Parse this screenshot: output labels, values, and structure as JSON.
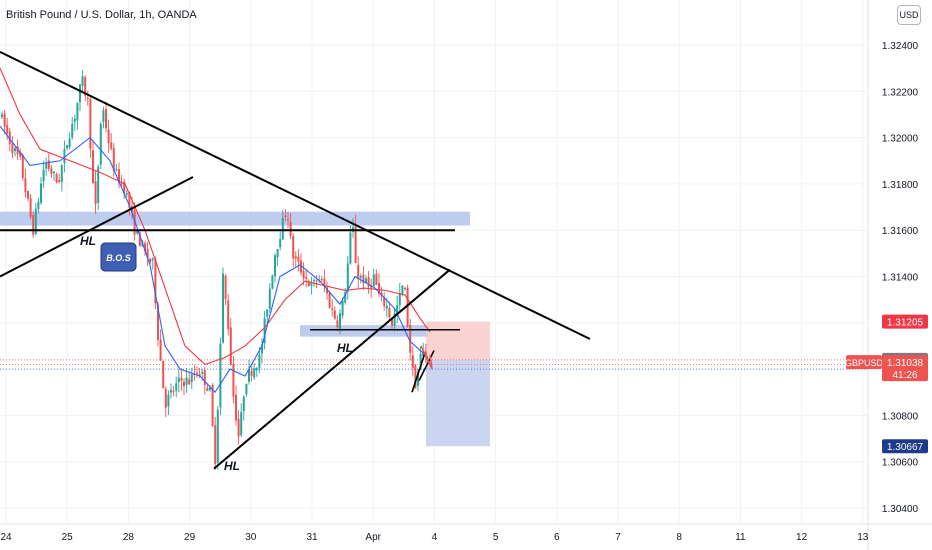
{
  "header": {
    "title": "British Pound / U.S. Dollar, 1h, OANDA",
    "currency_button": "USD"
  },
  "colors": {
    "bull": "#26a69a",
    "bear": "#ef5350",
    "ma_fast": "#2962ff",
    "ma_slow": "#f23645",
    "trendline": "#000000",
    "zone": "#b3c3ec",
    "stop_zone": "#f7c7c7",
    "target_zone": "#c5d0ee",
    "bos_box": "#3f5fb5"
  },
  "annotations": {
    "hl1": "HL",
    "hl2": "HL",
    "hl3": "HL",
    "bos": "B.O.S"
  },
  "price_badges": {
    "stop": "1.31205",
    "current": "1.31040",
    "symbol": "GBPUSD",
    "last_price": "1.31038",
    "countdown": "41:26",
    "target": "1.30667"
  },
  "chart_data": {
    "type": "candlestick",
    "symbol": "GBPUSD",
    "timeframe": "1h",
    "x_ticks": [
      "24",
      "25",
      "28",
      "29",
      "30",
      "31",
      "Apr",
      "4",
      "5",
      "6",
      "7",
      "8",
      "11",
      "12",
      "13"
    ],
    "y_ticks": [
      1.324,
      1.322,
      1.32,
      1.318,
      1.316,
      1.314,
      1.312,
      1.31,
      1.308,
      1.306,
      1.304
    ],
    "y_tick_labels": [
      "1.32400",
      "1.32200",
      "1.32000",
      "1.31800",
      "1.31600",
      "1.31400",
      "1.31200",
      "1.31000",
      "1.30800",
      "1.30600",
      "1.30400"
    ],
    "ylim": [
      1.303,
      1.325
    ],
    "grid": true,
    "path": [
      [
        0,
        1.321
      ],
      [
        12,
        1.3196
      ],
      [
        20,
        1.319
      ],
      [
        33,
        1.316
      ],
      [
        45,
        1.319
      ],
      [
        58,
        1.318
      ],
      [
        68,
        1.32
      ],
      [
        75,
        1.321
      ],
      [
        82,
        1.3225
      ],
      [
        88,
        1.3215
      ],
      [
        95,
        1.3165
      ],
      [
        102,
        1.3215
      ],
      [
        108,
        1.32
      ],
      [
        115,
        1.3185
      ],
      [
        125,
        1.3178
      ],
      [
        135,
        1.316
      ],
      [
        145,
        1.315
      ],
      [
        153,
        1.3145
      ],
      [
        158,
        1.3115
      ],
      [
        165,
        1.3085
      ],
      [
        172,
        1.309
      ],
      [
        180,
        1.3095
      ],
      [
        190,
        1.3095
      ],
      [
        198,
        1.31
      ],
      [
        205,
        1.3095
      ],
      [
        210,
        1.309
      ],
      [
        215,
        1.306
      ],
      [
        219,
        1.3095
      ],
      [
        223,
        1.314
      ],
      [
        228,
        1.312
      ],
      [
        233,
        1.309
      ],
      [
        239,
        1.307
      ],
      [
        245,
        1.3095
      ],
      [
        252,
        1.31
      ],
      [
        260,
        1.3105
      ],
      [
        268,
        1.313
      ],
      [
        275,
        1.315
      ],
      [
        281,
        1.316
      ],
      [
        287,
        1.317
      ],
      [
        292,
        1.315
      ],
      [
        298,
        1.3145
      ],
      [
        305,
        1.314
      ],
      [
        312,
        1.3135
      ],
      [
        318,
        1.314
      ],
      [
        325,
        1.3135
      ],
      [
        332,
        1.3125
      ],
      [
        338,
        1.312
      ],
      [
        344,
        1.313
      ],
      [
        349,
        1.315
      ],
      [
        352,
        1.3165
      ],
      [
        357,
        1.314
      ],
      [
        362,
        1.314
      ],
      [
        368,
        1.3135
      ],
      [
        374,
        1.314
      ],
      [
        380,
        1.313
      ],
      [
        386,
        1.3128
      ],
      [
        392,
        1.312
      ],
      [
        398,
        1.3128
      ],
      [
        404,
        1.3138
      ],
      [
        408,
        1.3118
      ],
      [
        412,
        1.31
      ],
      [
        416,
        1.3093
      ],
      [
        420,
        1.3105
      ],
      [
        424,
        1.3108
      ],
      [
        428,
        1.3104
      ]
    ],
    "ma_fast": [
      [
        0,
        1.3205
      ],
      [
        30,
        1.3188
      ],
      [
        60,
        1.319
      ],
      [
        90,
        1.32
      ],
      [
        110,
        1.319
      ],
      [
        130,
        1.317
      ],
      [
        150,
        1.3145
      ],
      [
        165,
        1.311
      ],
      [
        180,
        1.31
      ],
      [
        200,
        1.3097
      ],
      [
        215,
        1.309
      ],
      [
        230,
        1.31
      ],
      [
        245,
        1.3097
      ],
      [
        262,
        1.311
      ],
      [
        280,
        1.314
      ],
      [
        300,
        1.3145
      ],
      [
        320,
        1.3138
      ],
      [
        340,
        1.3128
      ],
      [
        355,
        1.314
      ],
      [
        375,
        1.3135
      ],
      [
        395,
        1.3126
      ],
      [
        410,
        1.3112
      ],
      [
        428,
        1.3105
      ]
    ],
    "ma_slow": [
      [
        0,
        1.323
      ],
      [
        20,
        1.321
      ],
      [
        40,
        1.3195
      ],
      [
        70,
        1.319
      ],
      [
        100,
        1.3185
      ],
      [
        125,
        1.318
      ],
      [
        145,
        1.316
      ],
      [
        165,
        1.3135
      ],
      [
        185,
        1.311
      ],
      [
        205,
        1.3102
      ],
      [
        225,
        1.3105
      ],
      [
        245,
        1.311
      ],
      [
        265,
        1.3118
      ],
      [
        285,
        1.313
      ],
      [
        305,
        1.3138
      ],
      [
        325,
        1.3136
      ],
      [
        345,
        1.3134
      ],
      [
        365,
        1.3135
      ],
      [
        385,
        1.3134
      ],
      [
        405,
        1.3132
      ],
      [
        420,
        1.3122
      ],
      [
        430,
        1.3116
      ]
    ],
    "drawings": {
      "main_trendline": [
        [
          0,
          1.3237
        ],
        [
          590,
          1.3113
        ]
      ],
      "lower_trendline": [
        [
          214,
          1.3057
        ],
        [
          450,
          1.3143
        ]
      ],
      "early_trendline": [
        [
          0,
          1.314
        ],
        [
          193,
          1.3183
        ]
      ],
      "resistance_zone": {
        "x": [
          0,
          470
        ],
        "y": [
          1.3162,
          1.3168
        ]
      },
      "support_level": {
        "x": [
          0,
          455
        ],
        "price": 1.316
      },
      "small_zone": {
        "x": [
          300,
          428
        ],
        "y": [
          1.3114,
          1.3119
        ]
      },
      "small_level": {
        "x": [
          310,
          460
        ],
        "price": 1.3117
      },
      "wedge_lines": [
        [
          [
            412,
            1.309
          ],
          [
            425,
            1.3107
          ]
        ],
        [
          [
            419,
            1.3095
          ],
          [
            434,
            1.3108
          ]
        ]
      ],
      "position": {
        "x": [
          426,
          490
        ],
        "entry": 1.3104,
        "stop": 1.31205,
        "target": 1.30667
      }
    },
    "ref_lines": [
      1.3104,
      1.3102,
      1.31
    ]
  }
}
